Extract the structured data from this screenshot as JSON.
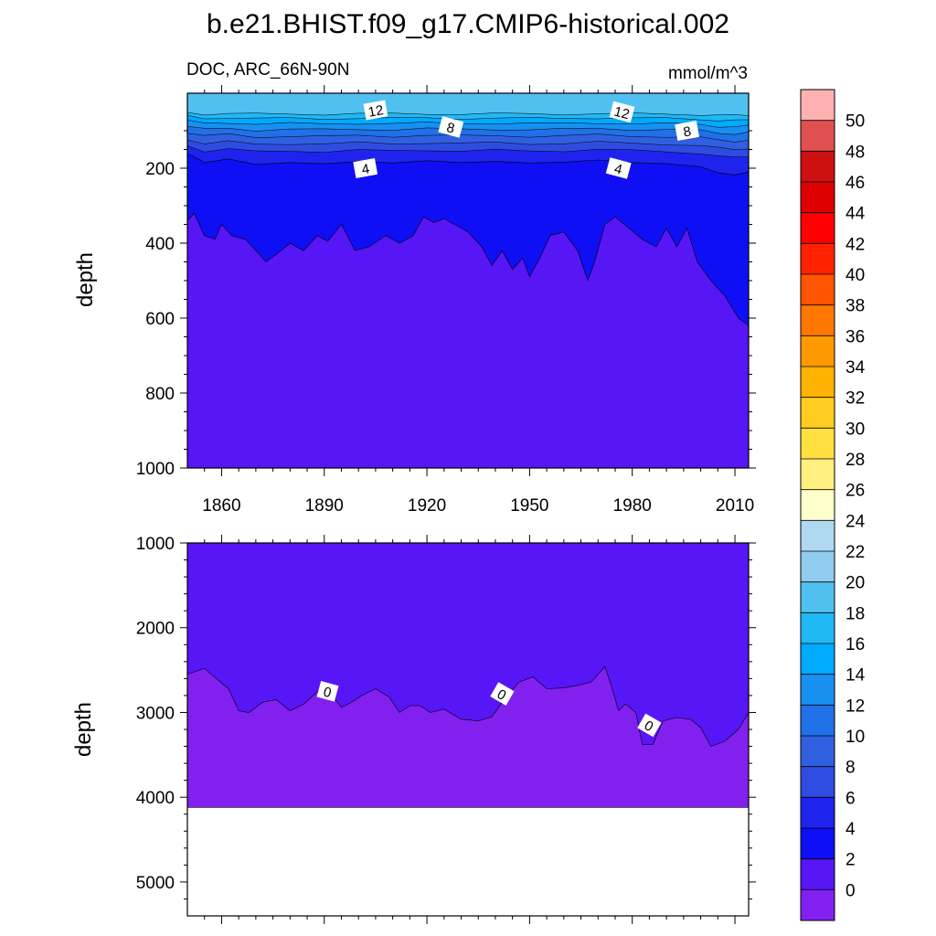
{
  "title": "b.e21.BHIST.f09_g17.CMIP6-historical.002",
  "units": "mmol/m^3",
  "chart_data": [
    {
      "type": "contour",
      "panel": "upper",
      "subtitle": "DOC, ARC_66N-90N",
      "units_label": "mmol/m^3",
      "ylabel": "depth",
      "xlim": [
        1850,
        2014
      ],
      "ylim": [
        0,
        1000
      ],
      "y_reversed": true,
      "xticks": [
        1860,
        1890,
        1920,
        1950,
        1980,
        2010
      ],
      "yticks": [
        200,
        400,
        600,
        800,
        1000
      ],
      "contour_labels": [
        {
          "text": "12",
          "x": 1905,
          "y": 45
        },
        {
          "text": "8",
          "x": 1927,
          "y": 90
        },
        {
          "text": "4",
          "x": 1902,
          "y": 200
        },
        {
          "text": "12",
          "x": 1977,
          "y": 50
        },
        {
          "text": "8",
          "x": 1996,
          "y": 100
        },
        {
          "text": "4",
          "x": 1976,
          "y": 200
        }
      ],
      "bands": [
        {
          "fill": "#1E24EE",
          "top": 160,
          "boundary": [
            [
              1850,
              160
            ],
            [
              1855,
              185
            ],
            [
              1862,
              175
            ],
            [
              1870,
              190
            ],
            [
              1880,
              185
            ],
            [
              1890,
              188
            ],
            [
              1900,
              182
            ],
            [
              1910,
              186
            ],
            [
              1920,
              180
            ],
            [
              1930,
              185
            ],
            [
              1940,
              182
            ],
            [
              1950,
              186
            ],
            [
              1960,
              184
            ],
            [
              1970,
              178
            ],
            [
              1980,
              185
            ],
            [
              1990,
              188
            ],
            [
              2000,
              196
            ],
            [
              2005,
              212
            ],
            [
              2010,
              218
            ],
            [
              2014,
              210
            ]
          ]
        },
        {
          "fill": "#0F0FF5",
          "top": 0,
          "boundary": [
            [
              1850,
              340
            ],
            [
              1852,
              320
            ],
            [
              1855,
              380
            ],
            [
              1858,
              390
            ],
            [
              1860,
              350
            ],
            [
              1863,
              380
            ],
            [
              1867,
              390
            ],
            [
              1870,
              420
            ],
            [
              1873,
              450
            ],
            [
              1876,
              430
            ],
            [
              1880,
              400
            ],
            [
              1884,
              420
            ],
            [
              1888,
              380
            ],
            [
              1891,
              395
            ],
            [
              1895,
              350
            ],
            [
              1899,
              420
            ],
            [
              1903,
              410
            ],
            [
              1908,
              380
            ],
            [
              1912,
              400
            ],
            [
              1916,
              380
            ],
            [
              1919,
              330
            ],
            [
              1922,
              345
            ],
            [
              1925,
              335
            ],
            [
              1928,
              350
            ],
            [
              1932,
              370
            ],
            [
              1936,
              410
            ],
            [
              1939,
              460
            ],
            [
              1942,
              420
            ],
            [
              1945,
              470
            ],
            [
              1948,
              440
            ],
            [
              1950,
              490
            ],
            [
              1953,
              440
            ],
            [
              1956,
              380
            ],
            [
              1960,
              370
            ],
            [
              1964,
              420
            ],
            [
              1967,
              500
            ],
            [
              1969,
              450
            ],
            [
              1972,
              350
            ],
            [
              1975,
              330
            ],
            [
              1979,
              360
            ],
            [
              1983,
              390
            ],
            [
              1987,
              410
            ],
            [
              1990,
              360
            ],
            [
              1993,
              410
            ],
            [
              1996,
              360
            ],
            [
              1999,
              450
            ],
            [
              2003,
              500
            ],
            [
              2007,
              540
            ],
            [
              2011,
              600
            ],
            [
              2014,
              620
            ]
          ]
        },
        {
          "fill": "#5716F6",
          "top": 0,
          "boundary": []
        }
      ]
    },
    {
      "type": "contour",
      "panel": "lower",
      "ylabel": "depth",
      "xlim": [
        1850,
        2014
      ],
      "ylim": [
        1000,
        5400
      ],
      "y_reversed": true,
      "yticks": [
        1000,
        2000,
        3000,
        4000,
        5000
      ],
      "contour_labels": [
        {
          "text": "0",
          "x": 1891,
          "y": 2750
        },
        {
          "text": "0",
          "x": 1942,
          "y": 2780
        },
        {
          "text": "0",
          "x": 1985,
          "y": 3150
        }
      ],
      "bottom_of_data": 4120
    }
  ],
  "colorbar": {
    "labels": [
      "50",
      "48",
      "46",
      "44",
      "42",
      "40",
      "38",
      "36",
      "34",
      "32",
      "30",
      "28",
      "26",
      "24",
      "22",
      "20",
      "18",
      "16",
      "14",
      "12",
      "10",
      "8",
      "6",
      "4",
      "2",
      "0"
    ],
    "colors": [
      "#FFB0B0",
      "#E05050",
      "#CC1010",
      "#DD0000",
      "#FF0000",
      "#FF2200",
      "#FF5500",
      "#FF7700",
      "#FF9900",
      "#FFB300",
      "#FFCC22",
      "#FFE040",
      "#FFF080",
      "#FFFFCC",
      "#B0D8F0",
      "#90CCEE",
      "#50C0F0",
      "#20B8F5",
      "#00AAFF",
      "#1890F0",
      "#2070E8",
      "#3060E0",
      "#2F4CE0",
      "#1E24EE",
      "#0F0FF5",
      "#5716F6",
      "#8220F0"
    ]
  }
}
